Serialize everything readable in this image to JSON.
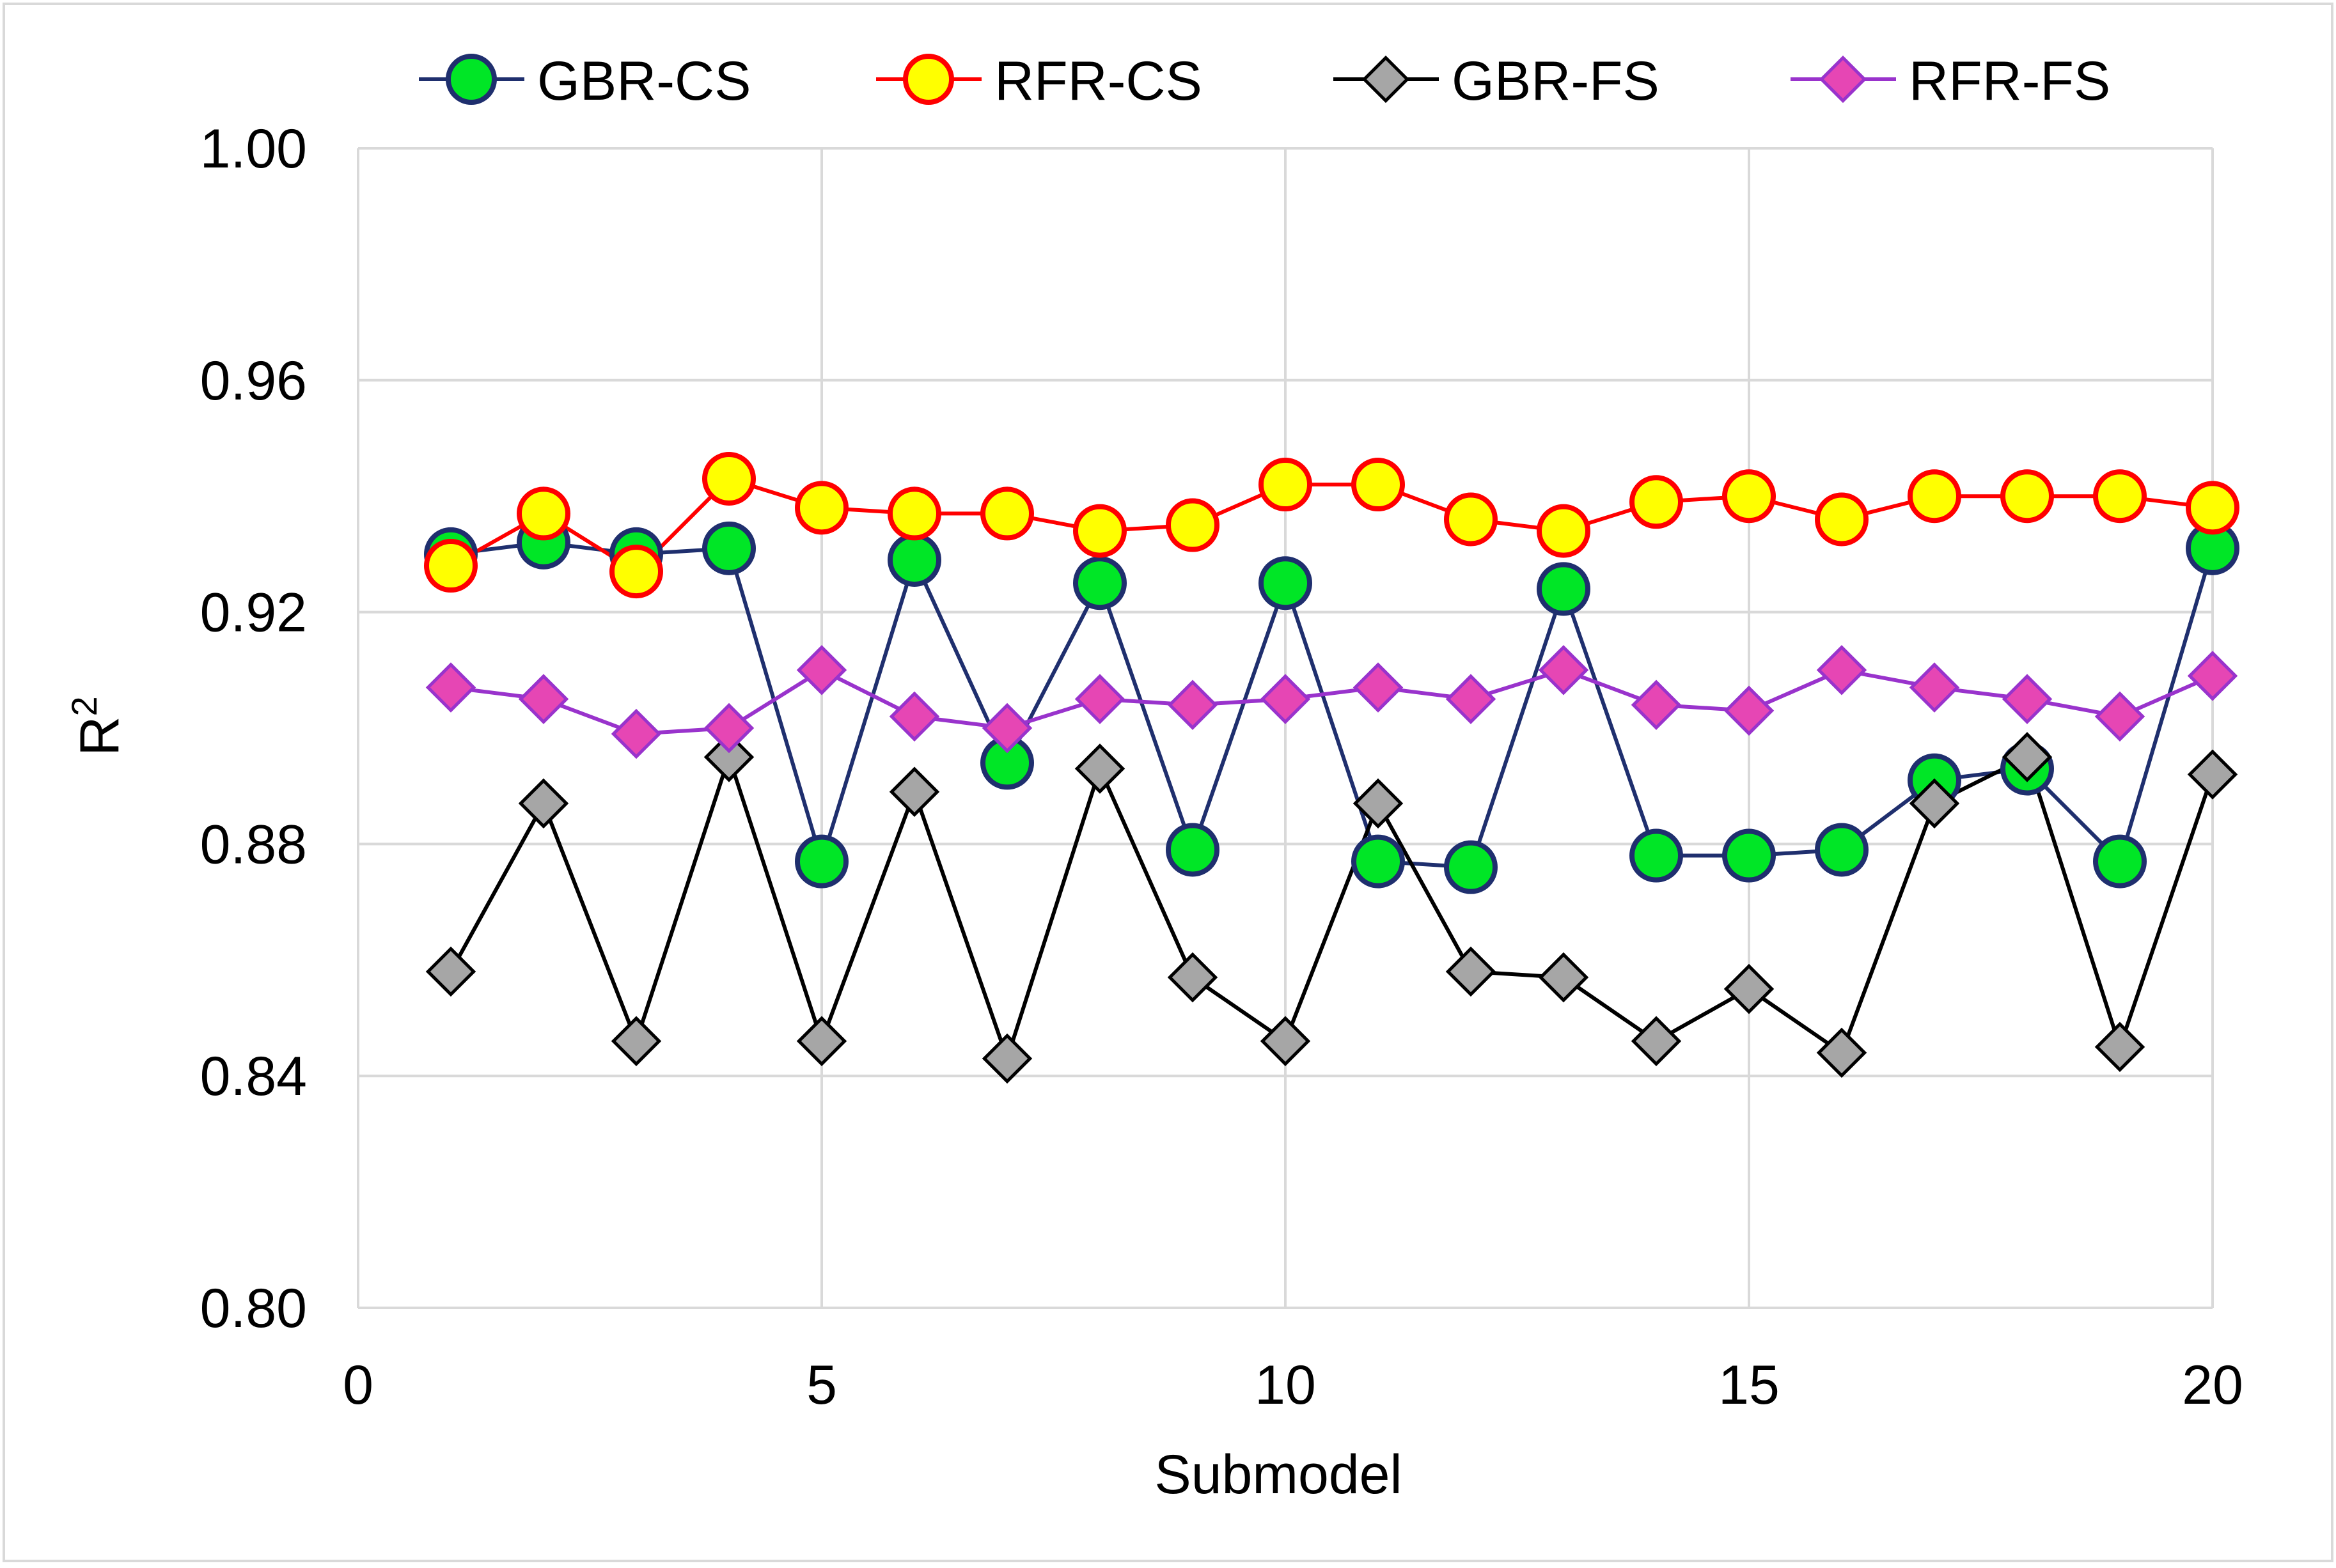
{
  "chart_data": {
    "type": "line",
    "title": "",
    "xlabel": "Submodel",
    "ylabel_base": "R",
    "ylabel_sup": "2",
    "xlim": [
      0,
      20
    ],
    "ylim": [
      0.8,
      1.0
    ],
    "xticks": [
      0,
      5,
      10,
      15,
      20
    ],
    "xtick_labels": [
      "0",
      "5",
      "10",
      "15",
      "20"
    ],
    "yticks": [
      0.8,
      0.84,
      0.88,
      0.92,
      0.96,
      1.0
    ],
    "ytick_labels": [
      "0.80",
      "0.84",
      "0.88",
      "0.92",
      "0.96",
      "1.00"
    ],
    "grid": true,
    "legend_position": "top",
    "x": [
      1,
      2,
      3,
      4,
      5,
      6,
      7,
      8,
      9,
      10,
      11,
      12,
      13,
      14,
      15,
      16,
      17,
      18,
      19,
      20
    ],
    "series": [
      {
        "name": "GBR-CS",
        "marker": "circle",
        "line_color": "#1f2f6e",
        "marker_fill": "#00e626",
        "marker_stroke": "#1f2f6e",
        "values": [
          0.93,
          0.932,
          0.93,
          0.931,
          0.877,
          0.929,
          0.894,
          0.925,
          0.879,
          0.925,
          0.877,
          0.876,
          0.924,
          0.878,
          0.878,
          0.879,
          0.891,
          0.893,
          0.877,
          0.931
        ]
      },
      {
        "name": "RFR-CS",
        "marker": "circle",
        "line_color": "#ff0000",
        "marker_fill": "#ffff00",
        "marker_stroke": "#ff0000",
        "values": [
          0.928,
          0.937,
          0.927,
          0.943,
          0.938,
          0.937,
          0.937,
          0.934,
          0.935,
          0.942,
          0.942,
          0.936,
          0.934,
          0.939,
          0.94,
          0.936,
          0.94,
          0.94,
          0.94,
          0.938
        ]
      },
      {
        "name": "GBR-FS",
        "marker": "diamond",
        "line_color": "#000000",
        "marker_fill": "#a6a6a6",
        "marker_stroke": "#000000",
        "values": [
          0.858,
          0.887,
          0.846,
          0.895,
          0.846,
          0.889,
          0.843,
          0.893,
          0.857,
          0.846,
          0.887,
          0.858,
          0.857,
          0.846,
          0.855,
          0.844,
          0.887,
          0.895,
          0.845,
          0.892
        ]
      },
      {
        "name": "RFR-FS",
        "marker": "diamond",
        "line_color": "#9933cc",
        "marker_fill": "#e646b4",
        "marker_stroke": "#9933cc",
        "values": [
          0.907,
          0.905,
          0.899,
          0.9,
          0.91,
          0.902,
          0.9,
          0.905,
          0.904,
          0.905,
          0.907,
          0.905,
          0.91,
          0.904,
          0.903,
          0.91,
          0.907,
          0.905,
          0.902,
          0.909
        ]
      }
    ]
  }
}
